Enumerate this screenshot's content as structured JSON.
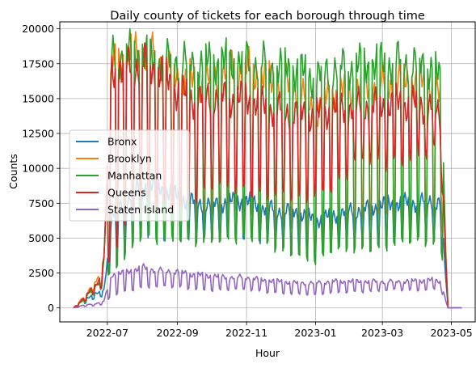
{
  "chart_data": {
    "type": "line",
    "title": "Daily county of tickets for each borough through time",
    "xlabel": "Hour",
    "ylabel": "Counts",
    "xlim": [
      "2022-05-20",
      "2023-05-22"
    ],
    "ylim": [
      -1000,
      20500
    ],
    "grid": true,
    "legend_position": "center-left",
    "x_ticks": [
      {
        "date": "2022-07-01",
        "label": "2022-07"
      },
      {
        "date": "2022-09-01",
        "label": "2022-09"
      },
      {
        "date": "2022-11-01",
        "label": "2022-11"
      },
      {
        "date": "2023-01-01",
        "label": "2023-01"
      },
      {
        "date": "2023-03-01",
        "label": "2023-03"
      },
      {
        "date": "2023-05-01",
        "label": "2023-05"
      }
    ],
    "y_ticks": [
      0,
      2500,
      5000,
      7500,
      10000,
      12500,
      15000,
      17500,
      20000
    ],
    "y_tick_labels": [
      "0",
      "2500",
      "5000",
      "7500",
      "10000",
      "12500",
      "15000",
      "17500",
      "20000"
    ],
    "series": [
      {
        "name": "Bronx",
        "color": "#1f77b4",
        "x": [
          "2022-06-01",
          "2022-06-10",
          "2022-06-20",
          "2022-06-25",
          "2022-06-28",
          "2022-07-05",
          "2022-07-15",
          "2022-08-01",
          "2022-08-15",
          "2022-09-01",
          "2022-09-15",
          "2022-10-01",
          "2022-10-15",
          "2022-11-01",
          "2022-11-15",
          "2022-12-01",
          "2022-12-15",
          "2023-01-01",
          "2023-01-15",
          "2023-02-01",
          "2023-02-15",
          "2023-03-01",
          "2023-03-15",
          "2023-04-01",
          "2023-04-15",
          "2023-04-22",
          "2023-04-26",
          "2023-04-28",
          "2023-05-10"
        ],
        "weekday": [
          0,
          600,
          1000,
          1100,
          1300,
          6500,
          7500,
          8800,
          8700,
          8000,
          7600,
          7400,
          7600,
          7700,
          7200,
          7000,
          6900,
          6300,
          6600,
          7000,
          7100,
          7400,
          7500,
          7600,
          7700,
          7500,
          2000,
          0,
          0
        ],
        "weekend": [
          0,
          300,
          700,
          800,
          900,
          3500,
          4500,
          5500,
          5300,
          5200,
          5000,
          5100,
          5400,
          5300,
          5000,
          4800,
          4700,
          3800,
          4500,
          4900,
          5000,
          5000,
          5000,
          5200,
          5400,
          5000,
          1500,
          0,
          0
        ]
      },
      {
        "name": "Brooklyn",
        "color": "#ff7f0e",
        "x": [
          "2022-06-01",
          "2022-06-10",
          "2022-06-20",
          "2022-06-25",
          "2022-06-28",
          "2022-07-05",
          "2022-07-15",
          "2022-08-01",
          "2022-08-15",
          "2022-09-01",
          "2022-09-15",
          "2022-10-01",
          "2022-10-15",
          "2022-11-01",
          "2022-11-15",
          "2022-12-01",
          "2022-12-15",
          "2023-01-01",
          "2023-01-15",
          "2023-02-01",
          "2023-02-15",
          "2023-03-01",
          "2023-03-15",
          "2023-04-01",
          "2023-04-15",
          "2023-04-22",
          "2023-04-26",
          "2023-04-28",
          "2023-05-10"
        ],
        "weekday": [
          0,
          800,
          1800,
          2300,
          3800,
          17500,
          17800,
          18500,
          17800,
          16500,
          16200,
          16300,
          17000,
          17200,
          16500,
          16000,
          15800,
          14000,
          15400,
          15600,
          15800,
          16000,
          16300,
          16200,
          16000,
          14800,
          4000,
          0,
          0
        ],
        "weekend": [
          0,
          400,
          1300,
          1600,
          2200,
          4500,
          5500,
          7500,
          7200,
          7000,
          6500,
          6800,
          7000,
          7000,
          6500,
          6000,
          5800,
          4000,
          6000,
          6200,
          6500,
          6500,
          6500,
          6800,
          7000,
          6500,
          2000,
          0,
          0
        ]
      },
      {
        "name": "Manhattan",
        "color": "#2ca02c",
        "x": [
          "2022-06-01",
          "2022-06-10",
          "2022-06-20",
          "2022-06-25",
          "2022-06-28",
          "2022-07-05",
          "2022-07-15",
          "2022-08-01",
          "2022-08-15",
          "2022-09-01",
          "2022-09-15",
          "2022-10-01",
          "2022-10-15",
          "2022-11-01",
          "2022-11-15",
          "2022-12-01",
          "2022-12-15",
          "2023-01-01",
          "2023-01-15",
          "2023-02-01",
          "2023-02-15",
          "2023-03-01",
          "2023-03-15",
          "2023-04-01",
          "2023-04-15",
          "2023-04-22",
          "2023-04-26",
          "2023-04-28",
          "2023-05-10"
        ],
        "weekday": [
          0,
          600,
          1500,
          2000,
          3500,
          18000,
          18200,
          18200,
          17500,
          17800,
          17500,
          17600,
          17600,
          17700,
          17500,
          17200,
          17000,
          16500,
          17200,
          17300,
          17400,
          17500,
          17700,
          17500,
          17200,
          16000,
          4000,
          0,
          0
        ],
        "weekend": [
          0,
          300,
          1000,
          1300,
          1800,
          2500,
          3500,
          5500,
          5000,
          4800,
          4600,
          5000,
          5100,
          5000,
          4600,
          4200,
          4000,
          3300,
          4000,
          4200,
          4400,
          4400,
          4600,
          4700,
          4800,
          4200,
          1500,
          0,
          0
        ]
      },
      {
        "name": "Queens",
        "color": "#d62728",
        "x": [
          "2022-06-01",
          "2022-06-10",
          "2022-06-20",
          "2022-06-25",
          "2022-06-28",
          "2022-07-05",
          "2022-07-15",
          "2022-08-01",
          "2022-08-15",
          "2022-09-01",
          "2022-09-15",
          "2022-10-01",
          "2022-10-15",
          "2022-11-01",
          "2022-11-15",
          "2022-12-01",
          "2022-12-15",
          "2023-01-01",
          "2023-01-15",
          "2023-02-01",
          "2023-02-15",
          "2023-03-01",
          "2023-03-15",
          "2023-04-01",
          "2023-04-15",
          "2023-04-22",
          "2023-04-26",
          "2023-04-28",
          "2023-05-10"
        ],
        "weekday": [
          0,
          700,
          1600,
          2200,
          3500,
          17000,
          17200,
          17600,
          17000,
          15500,
          15000,
          15200,
          15000,
          15000,
          14500,
          14200,
          14000,
          13800,
          14200,
          14400,
          14600,
          14500,
          14700,
          14600,
          14400,
          13500,
          3500,
          0,
          0
        ],
        "weekend": [
          0,
          400,
          1200,
          1500,
          2000,
          4000,
          5500,
          8000,
          7800,
          7500,
          7800,
          8500,
          9000,
          8800,
          8500,
          8000,
          7800,
          8500,
          9000,
          10000,
          10500,
          10800,
          11000,
          11200,
          11000,
          10000,
          2500,
          0,
          0
        ]
      },
      {
        "name": "Staten Island",
        "color": "#9467bd",
        "x": [
          "2022-06-01",
          "2022-06-10",
          "2022-06-20",
          "2022-06-25",
          "2022-06-28",
          "2022-07-05",
          "2022-07-15",
          "2022-08-01",
          "2022-08-15",
          "2022-09-01",
          "2022-09-15",
          "2022-10-01",
          "2022-10-15",
          "2022-11-01",
          "2022-11-15",
          "2022-12-01",
          "2022-12-15",
          "2023-01-01",
          "2023-01-15",
          "2023-02-01",
          "2023-02-15",
          "2023-03-01",
          "2023-03-15",
          "2023-04-01",
          "2023-04-15",
          "2023-04-22",
          "2023-04-26",
          "2023-04-28",
          "2023-05-10"
        ],
        "weekday": [
          0,
          200,
          300,
          400,
          500,
          2400,
          2500,
          2900,
          2700,
          2600,
          2400,
          2300,
          2200,
          2200,
          2000,
          1900,
          1800,
          1800,
          1900,
          1900,
          1900,
          1900,
          1900,
          1950,
          2000,
          1900,
          500,
          0,
          0
        ],
        "weekend": [
          0,
          100,
          150,
          200,
          300,
          900,
          1200,
          1500,
          1500,
          1500,
          1400,
          1300,
          1300,
          1300,
          1200,
          1100,
          1000,
          900,
          1100,
          1200,
          1200,
          1200,
          1300,
          1300,
          1400,
          1300,
          300,
          0,
          0
        ]
      }
    ]
  }
}
